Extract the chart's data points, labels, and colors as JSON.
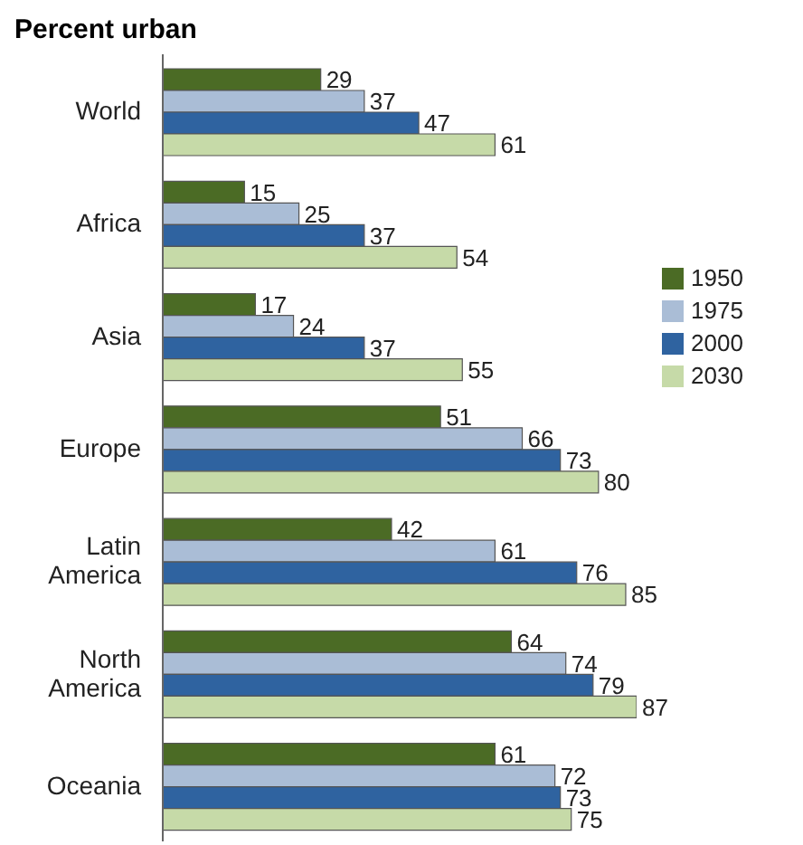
{
  "chart_data": {
    "type": "bar",
    "orientation": "horizontal",
    "title": "Percent urban",
    "categories": [
      "World",
      "Africa",
      "Asia",
      "Europe",
      "Latin America",
      "North America",
      "Oceania"
    ],
    "series": [
      {
        "name": "1950",
        "color": "#4b6b25",
        "values": [
          29,
          15,
          17,
          51,
          42,
          64,
          61
        ]
      },
      {
        "name": "1975",
        "color": "#aabdd6",
        "values": [
          37,
          25,
          24,
          66,
          61,
          74,
          72
        ]
      },
      {
        "name": "2000",
        "color": "#2f63a0",
        "values": [
          47,
          37,
          37,
          73,
          76,
          79,
          73
        ]
      },
      {
        "name": "2030",
        "color": "#c6daa8",
        "values": [
          61,
          54,
          55,
          80,
          85,
          87,
          75
        ]
      }
    ],
    "data_labels": true,
    "legend": "right",
    "grid": false
  }
}
